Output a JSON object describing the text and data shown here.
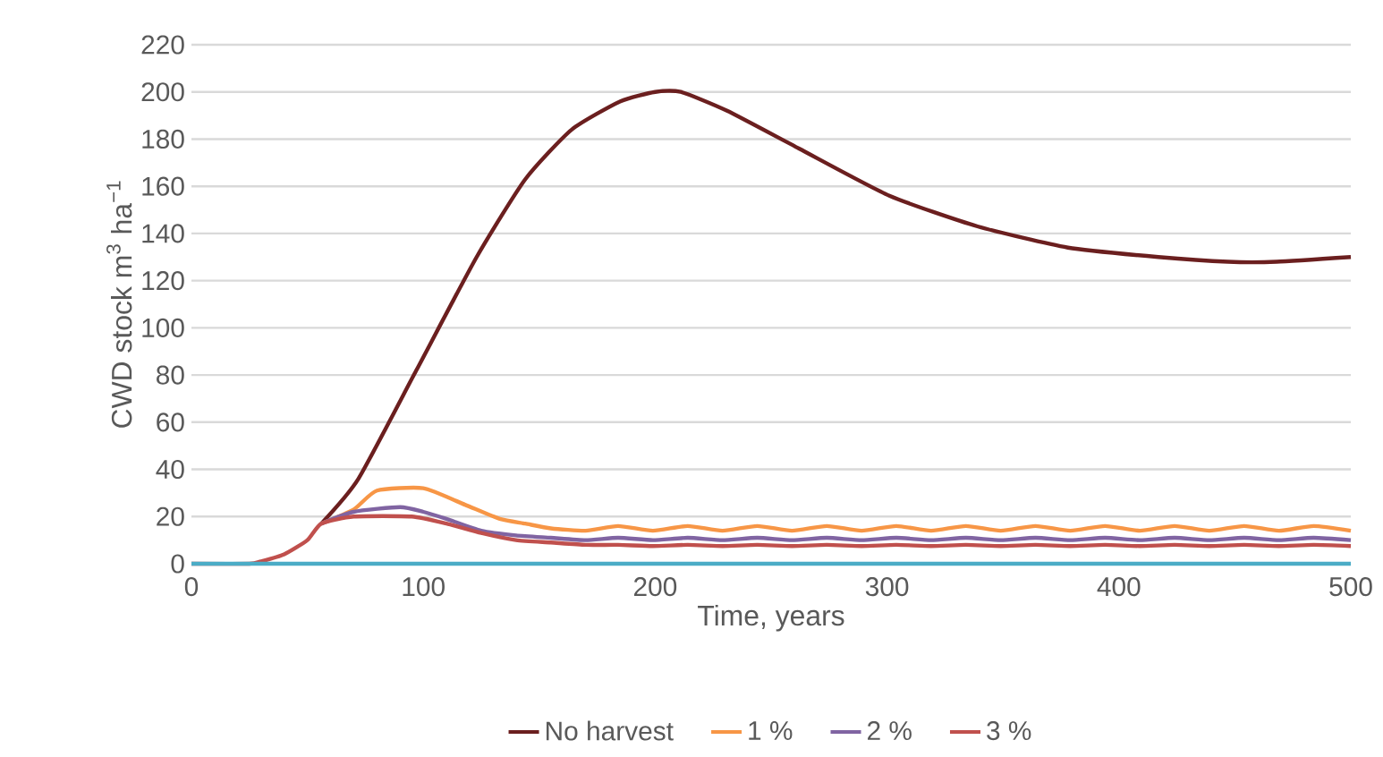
{
  "chart_data": {
    "type": "line",
    "xlabel": "Time, years",
    "ylabel": "CWD stock m$^{3}$ ha$^{−1}$",
    "xlim": [
      0,
      500
    ],
    "ylim": [
      0,
      220
    ],
    "xticks": [
      0,
      100,
      200,
      300,
      400,
      500
    ],
    "yticks": [
      0,
      20,
      40,
      60,
      80,
      100,
      120,
      140,
      160,
      180,
      200,
      220
    ],
    "grid": "y",
    "legend": "bottom",
    "series": [
      {
        "name": "No harvest",
        "color": "#6b1f1f",
        "x": [
          56,
          72,
          97,
          123,
          144,
          164,
          185,
          200,
          211,
          231,
          262,
          301,
          339,
          378,
          417,
          447,
          468,
          500
        ],
        "values": [
          17,
          36,
          82,
          130,
          163,
          184,
          196,
          200,
          200,
          192,
          176,
          156,
          143,
          134,
          130,
          128,
          128,
          130
        ]
      },
      {
        "name": "1 %",
        "color": "#f79646",
        "x": [
          56,
          70,
          80,
          100,
          118,
          133,
          144,
          155,
          170,
          184,
          199,
          214,
          229,
          244,
          259,
          274,
          289,
          304,
          319,
          334,
          349,
          364,
          379,
          394,
          409,
          424,
          439,
          454,
          469,
          484,
          500
        ],
        "values": [
          17,
          23,
          31,
          32,
          25,
          19,
          17,
          15,
          14,
          16,
          14,
          16,
          14,
          16,
          14,
          16,
          14,
          16,
          14,
          16,
          14,
          16,
          14,
          16,
          14,
          16,
          14,
          16,
          14,
          16,
          14
        ]
      },
      {
        "name": "2 %",
        "color": "#8064a2",
        "x": [
          56,
          70,
          90,
          100,
          110,
          125,
          140,
          155,
          170,
          184,
          199,
          214,
          229,
          244,
          259,
          274,
          289,
          304,
          319,
          334,
          349,
          364,
          379,
          394,
          409,
          424,
          439,
          454,
          469,
          484,
          500
        ],
        "values": [
          17,
          22,
          24,
          22,
          19,
          14,
          12,
          11,
          10,
          11,
          10,
          11,
          10,
          11,
          10,
          11,
          10,
          11,
          10,
          11,
          10,
          11,
          10,
          11,
          10,
          11,
          10,
          11,
          10,
          11,
          10
        ]
      },
      {
        "name": "3 %",
        "color": "#c0504d",
        "x": [
          0,
          25,
          30,
          40,
          50,
          56,
          70,
          95,
          110,
          125,
          140,
          155,
          170,
          184,
          199,
          214,
          229,
          244,
          259,
          274,
          289,
          304,
          319,
          334,
          349,
          364,
          379,
          394,
          409,
          424,
          439,
          454,
          469,
          484,
          500
        ],
        "values": [
          0,
          0,
          1,
          4,
          10,
          17,
          20,
          20,
          17,
          13,
          10,
          9,
          8,
          8,
          7.5,
          8,
          7.5,
          8,
          7.5,
          8,
          7.5,
          8,
          7.5,
          8,
          7.5,
          8,
          7.5,
          8,
          7.5,
          8,
          7.5,
          8,
          7.5,
          8,
          7.5
        ]
      },
      {
        "color": "#4bacc6",
        "x": [
          0,
          500
        ],
        "values": [
          0,
          0
        ]
      }
    ]
  }
}
